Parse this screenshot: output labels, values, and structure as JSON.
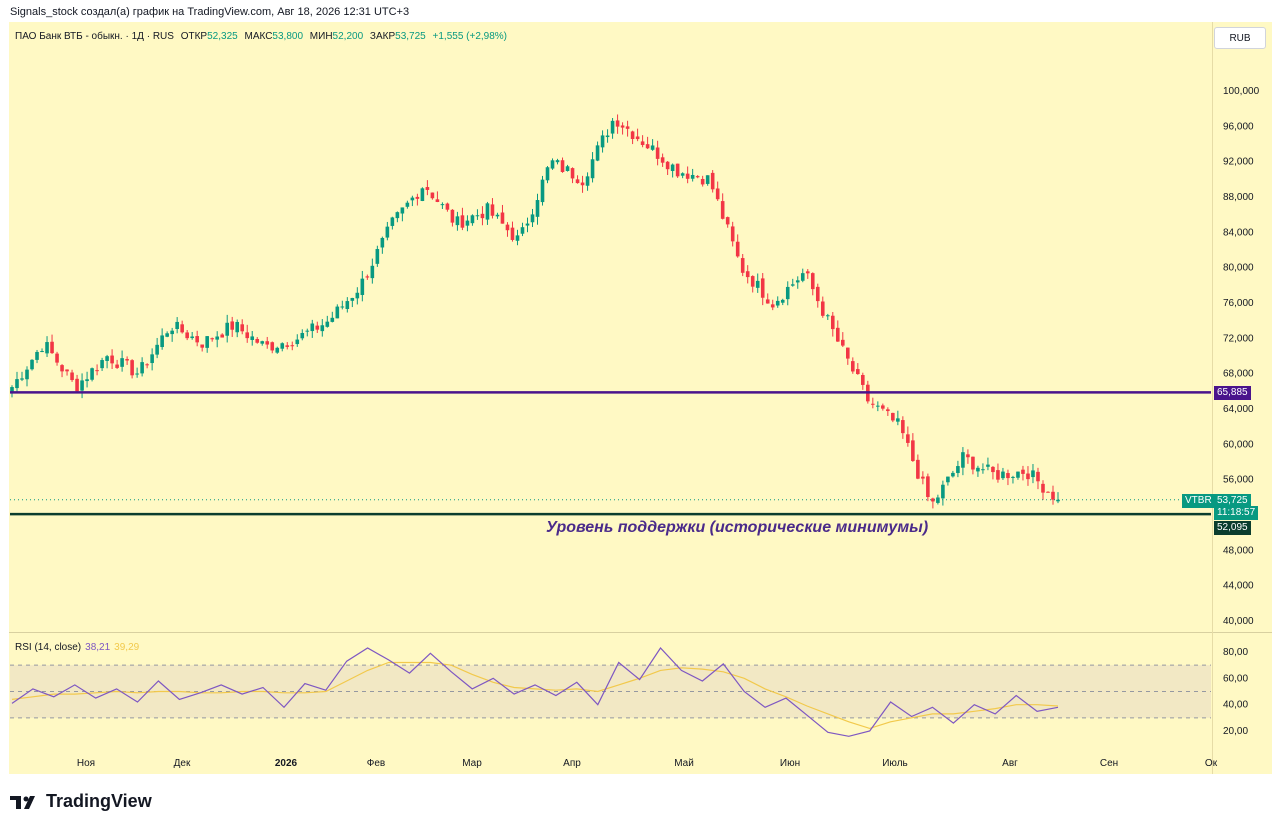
{
  "header": {
    "caption": "Signals_stock создал(а) график на TradingView.com, Авг 18, 2026 12:31 UTC+3"
  },
  "legend": {
    "symbol": "ПАО Банк ВТБ - обыкн. · 1Д · RUS",
    "open_label": "ОТКР",
    "open": "52,325",
    "high_label": "МАКС",
    "high": "53,800",
    "low_label": "МИН",
    "low": "52,200",
    "close_label": "ЗАКР",
    "close": "53,725",
    "change": "+1,555 (+2,98%)"
  },
  "currency": "RUB",
  "price_tags": {
    "resistance": "65,885",
    "ticker": "VTBR",
    "last": "53,725",
    "countdown": "11:18:57",
    "support": "52,095"
  },
  "annotation": "Уровень поддержки (исторические минимумы)",
  "rsi_legend": {
    "name": "RSI (14, close)",
    "value": "38,21",
    "ma": "39,29"
  },
  "brand": "TradingView",
  "colors": {
    "up": "#089981",
    "down": "#f23645",
    "background": "#fff9c4",
    "resistance": "#4a148c",
    "support": "#0b3d2e",
    "rsi": "#7e57c2",
    "rsi_ma": "#f2c94c"
  },
  "chart_data": [
    {
      "type": "candlestick",
      "title": "ПАО Банк ВТБ - обыкн. · 1Д · RUS",
      "y_ticks": [
        "40,000",
        "44,000",
        "48,000",
        "52,000",
        "56,000",
        "60,000",
        "64,000",
        "68,000",
        "72,000",
        "76,000",
        "80,000",
        "84,000",
        "88,000",
        "92,000",
        "96,000",
        "100,000"
      ],
      "ylim": [
        38,
        103
      ],
      "x_ticks": [
        "Ноя",
        "Дек",
        "2026",
        "Фев",
        "Мар",
        "Апр",
        "Май",
        "Июн",
        "Июль",
        "Авг",
        "Сен",
        "Ок"
      ],
      "approx_close_path": [
        {
          "date": "Окт 21",
          "close": 66.5
        },
        {
          "date": "Окт 26",
          "close": 71.5
        },
        {
          "date": "Окт 30",
          "close": 66.5
        },
        {
          "date": "Ноя 10",
          "close": 70.0
        },
        {
          "date": "Ноя 20",
          "close": 68.0
        },
        {
          "date": "Дек 1",
          "close": 73.5
        },
        {
          "date": "Дек 15",
          "close": 71.5
        },
        {
          "date": "Дек 25",
          "close": 73.5
        },
        {
          "date": "2026",
          "close": 71.0
        },
        {
          "date": "Янн 15",
          "close": 72.0
        },
        {
          "date": "Янн 25",
          "close": 74.0
        },
        {
          "date": "Фев 1",
          "close": 78.0
        },
        {
          "date": "Фев 10",
          "close": 85.0
        },
        {
          "date": "Фев 20",
          "close": 89.5
        },
        {
          "date": "Мар 1",
          "close": 85.0
        },
        {
          "date": "Мар 15",
          "close": 86.5
        },
        {
          "date": "Апр 1",
          "close": 83.0
        },
        {
          "date": "Апр 10",
          "close": 92.0
        },
        {
          "date": "Апр 20",
          "close": 90.0
        },
        {
          "date": "Апр 30",
          "close": 97.0
        },
        {
          "date": "Май 5",
          "close": 94.0
        },
        {
          "date": "Май 15",
          "close": 91.0
        },
        {
          "date": "Май 25",
          "close": 90.0
        },
        {
          "date": "Июн 1",
          "close": 80.0
        },
        {
          "date": "Июн 10",
          "close": 76.0
        },
        {
          "date": "Июн 20",
          "close": 79.5
        },
        {
          "date": "Июл 1",
          "close": 72.0
        },
        {
          "date": "Июл 5",
          "close": 65.0
        },
        {
          "date": "Июл 15",
          "close": 62.0
        },
        {
          "date": "Июл 22",
          "close": 53.0
        },
        {
          "date": "Июл 28",
          "close": 58.5
        },
        {
          "date": "Авг 5",
          "close": 56.5
        },
        {
          "date": "Авг 12",
          "close": 57.0
        },
        {
          "date": "Авг 18",
          "close": 53.725
        }
      ],
      "horizontal_levels": [
        {
          "name": "resistance",
          "value": 65.885
        },
        {
          "name": "support",
          "value": 52.095
        }
      ],
      "last_price": 53.725
    },
    {
      "type": "line",
      "title": "RSI (14, close)",
      "y_ticks": [
        "20,00",
        "40,00",
        "60,00",
        "80,00"
      ],
      "ylim": [
        8,
        90
      ],
      "bands": [
        30,
        50,
        70
      ],
      "series": [
        {
          "name": "RSI",
          "values": [
            41,
            52,
            46,
            55,
            45,
            52,
            42,
            58,
            44,
            49,
            55,
            48,
            53,
            38,
            56,
            51,
            73,
            83,
            74,
            64,
            79,
            65,
            52,
            60,
            48,
            55,
            47,
            57,
            40,
            72,
            59,
            83,
            66,
            58,
            71,
            50,
            38,
            45,
            32,
            19,
            16,
            20,
            42,
            31,
            38,
            26,
            40,
            33,
            47,
            35,
            38
          ]
        },
        {
          "name": "MA",
          "values": [
            44,
            46,
            48,
            48,
            49,
            50,
            49,
            50,
            50,
            49,
            49,
            50,
            50,
            49,
            49,
            50,
            58,
            66,
            72,
            72,
            72,
            70,
            63,
            57,
            53,
            52,
            51,
            52,
            50,
            55,
            60,
            66,
            68,
            67,
            65,
            60,
            52,
            46,
            39,
            33,
            27,
            22,
            27,
            30,
            33,
            33,
            35,
            37,
            40,
            40,
            39
          ]
        }
      ]
    }
  ]
}
